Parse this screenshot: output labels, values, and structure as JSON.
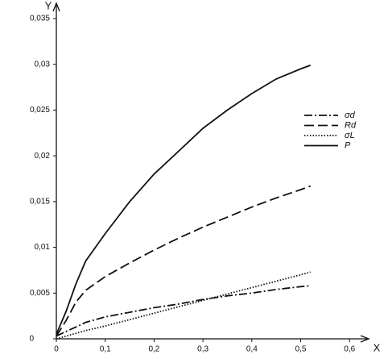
{
  "chart_data": {
    "type": "line",
    "x_label": "X",
    "y_label": "Y",
    "xlim": [
      0,
      0.635
    ],
    "ylim": [
      0,
      0.0365
    ],
    "xticks": [
      0,
      {
        "value": 0.1,
        "label": "0,1"
      },
      {
        "value": 0.2,
        "label": "0,2"
      },
      {
        "value": 0.3,
        "label": "0,3"
      },
      {
        "value": 0.4,
        "label": "0,4"
      },
      {
        "value": 0.5,
        "label": "0,5"
      },
      {
        "value": 0.6,
        "label": "0,6"
      }
    ],
    "yticks": [
      0,
      {
        "value": 0.005,
        "label": "0,005"
      },
      {
        "value": 0.01,
        "label": "0,01"
      },
      {
        "value": 0.015,
        "label": "0,015"
      },
      {
        "value": 0.02,
        "label": "0,02"
      },
      {
        "value": 0.025,
        "label": "0,025"
      },
      {
        "value": 0.03,
        "label": "0,03"
      },
      {
        "value": 0.035,
        "label": "0,035"
      }
    ],
    "legend": "upper right",
    "x": [
      0,
      0.02,
      0.04,
      0.06,
      0.1,
      0.15,
      0.2,
      0.25,
      0.3,
      0.35,
      0.4,
      0.45,
      0.5,
      0.52
    ],
    "series": [
      {
        "name": "σd",
        "color": "#111",
        "dash": "10 3 2 3",
        "values": [
          0.0003,
          0.0008,
          0.0013,
          0.0018,
          0.0024,
          0.0029,
          0.0034,
          0.0038,
          0.0043,
          0.0047,
          0.005,
          0.0054,
          0.0057,
          0.0058
        ]
      },
      {
        "name": "Rd",
        "color": "#111",
        "dash": "12 5",
        "values": [
          0.0003,
          0.002,
          0.004,
          0.0053,
          0.0068,
          0.0083,
          0.0097,
          0.011,
          0.0122,
          0.0133,
          0.0144,
          0.0154,
          0.0163,
          0.0167
        ]
      },
      {
        "name": "σL",
        "color": "#111",
        "dash": "1.5 2",
        "values": [
          0,
          0.0003,
          0.0006,
          0.0009,
          0.0014,
          0.0021,
          0.0028,
          0.0035,
          0.0042,
          0.0049,
          0.0056,
          0.0063,
          0.007,
          0.0073
        ]
      },
      {
        "name": "P",
        "color": "#111",
        "dash": "none",
        "values": [
          0.0005,
          0.003,
          0.006,
          0.0085,
          0.0115,
          0.015,
          0.018,
          0.0205,
          0.023,
          0.025,
          0.0268,
          0.0284,
          0.0295,
          0.0299
        ]
      }
    ]
  }
}
